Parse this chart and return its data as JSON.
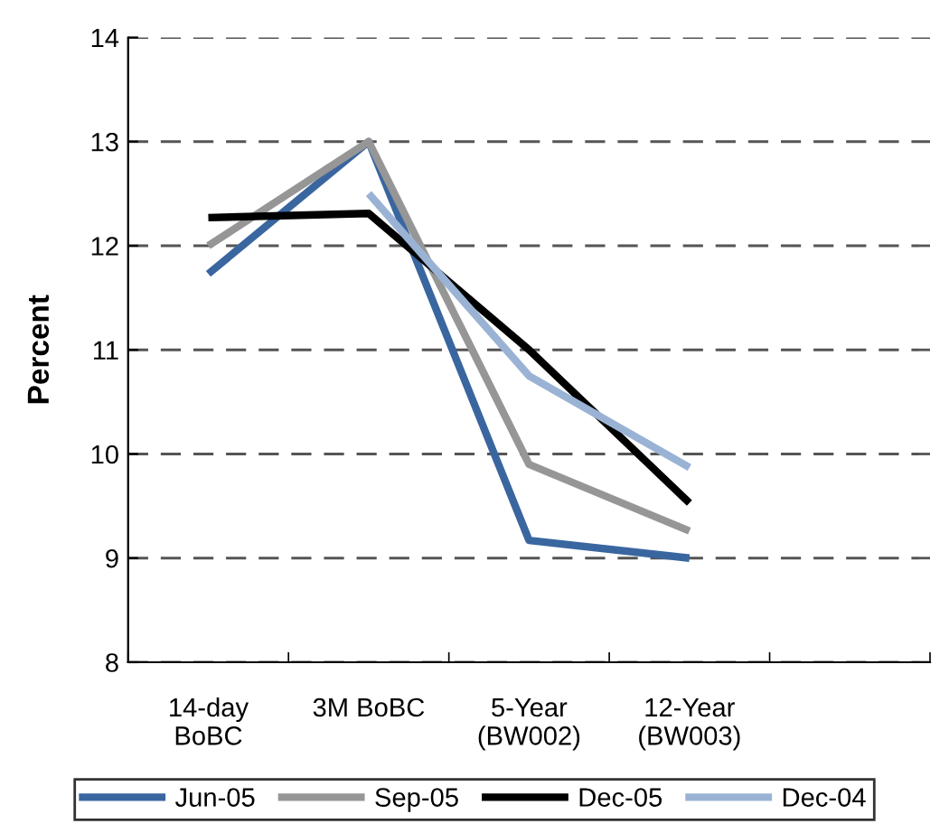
{
  "chart_data": {
    "type": "line",
    "ylabel": "Percent",
    "categories": [
      "14-day\nBoBC",
      "3M BoBC",
      "5-Year\n(BW002)",
      "12-Year\n(BW003)",
      null
    ],
    "series": [
      {
        "name": "Jun-05",
        "color": "#3a66a0",
        "values": [
          11.73,
          13.0,
          9.17,
          9.0,
          null
        ]
      },
      {
        "name": "Sep-05",
        "color": "#969696",
        "values": [
          12.0,
          13.0,
          9.9,
          9.26,
          null
        ]
      },
      {
        "name": "Dec-05",
        "color": "#000000",
        "values": [
          12.27,
          12.31,
          11.0,
          9.53,
          null
        ]
      },
      {
        "name": "Dec-04",
        "color": "#9ab3d5",
        "values": [
          null,
          12.5,
          10.75,
          9.87,
          null
        ]
      }
    ],
    "ylim": [
      8,
      14
    ],
    "yticks": [
      8,
      9,
      10,
      11,
      12,
      13,
      14
    ],
    "grid": "y",
    "legend": "bottom",
    "line_style": "solid",
    "marker": "none"
  }
}
